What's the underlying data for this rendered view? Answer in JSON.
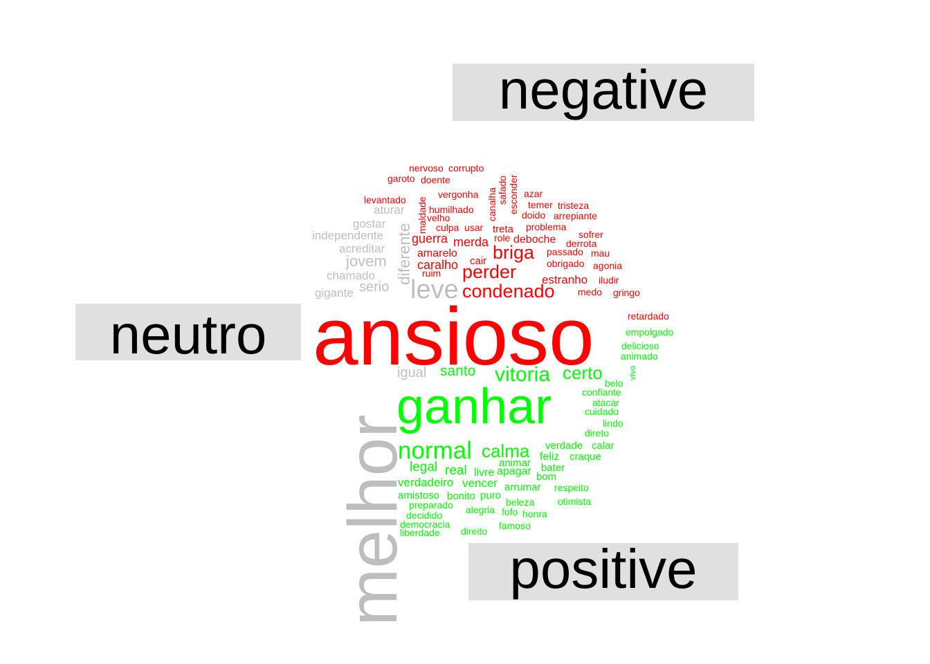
{
  "chart_data": {
    "type": "wordcloud",
    "colors": {
      "negative": "#ff0000",
      "positive": "#00ff00",
      "neutro": "#bebebe",
      "label_box": "#e0e0e0",
      "label_text": "#000000"
    },
    "categories": [
      {
        "name": "negative",
        "color": "#ff0000"
      },
      {
        "name": "neutro",
        "color": "#bebebe"
      },
      {
        "name": "positive",
        "color": "#00ff00"
      }
    ],
    "words": [
      {
        "text": "ansioso",
        "sentiment": "negative"
      },
      {
        "text": "condenado",
        "sentiment": "negative"
      },
      {
        "text": "perder",
        "sentiment": "negative"
      },
      {
        "text": "briga",
        "sentiment": "negative"
      },
      {
        "text": "merda",
        "sentiment": "negative"
      },
      {
        "text": "caralho",
        "sentiment": "negative"
      },
      {
        "text": "guerra",
        "sentiment": "negative"
      },
      {
        "text": "amarelo",
        "sentiment": "negative"
      },
      {
        "text": "deboche",
        "sentiment": "negative"
      },
      {
        "text": "estranho",
        "sentiment": "negative"
      },
      {
        "text": "cair",
        "sentiment": "negative"
      },
      {
        "text": "treta",
        "sentiment": "negative"
      },
      {
        "text": "role",
        "sentiment": "negative"
      },
      {
        "text": "problema",
        "sentiment": "negative"
      },
      {
        "text": "derrota",
        "sentiment": "negative"
      },
      {
        "text": "passado",
        "sentiment": "negative"
      },
      {
        "text": "mau",
        "sentiment": "negative"
      },
      {
        "text": "obrigado",
        "sentiment": "negative"
      },
      {
        "text": "agonia",
        "sentiment": "negative"
      },
      {
        "text": "iludir",
        "sentiment": "negative"
      },
      {
        "text": "medo",
        "sentiment": "negative"
      },
      {
        "text": "gringo",
        "sentiment": "negative"
      },
      {
        "text": "sofrer",
        "sentiment": "negative"
      },
      {
        "text": "arrepiante",
        "sentiment": "negative"
      },
      {
        "text": "doido",
        "sentiment": "negative"
      },
      {
        "text": "temer",
        "sentiment": "negative"
      },
      {
        "text": "tristeza",
        "sentiment": "negative"
      },
      {
        "text": "azar",
        "sentiment": "negative"
      },
      {
        "text": "culpa",
        "sentiment": "negative"
      },
      {
        "text": "usar",
        "sentiment": "negative"
      },
      {
        "text": "velho",
        "sentiment": "negative"
      },
      {
        "text": "humilhado",
        "sentiment": "negative"
      },
      {
        "text": "vergonha",
        "sentiment": "negative"
      },
      {
        "text": "levantado",
        "sentiment": "negative"
      },
      {
        "text": "garoto",
        "sentiment": "negative"
      },
      {
        "text": "doente",
        "sentiment": "negative"
      },
      {
        "text": "nervoso",
        "sentiment": "negative"
      },
      {
        "text": "corrupto",
        "sentiment": "negative"
      },
      {
        "text": "ruim",
        "sentiment": "negative"
      },
      {
        "text": "maldade",
        "sentiment": "negative"
      },
      {
        "text": "canalha",
        "sentiment": "negative"
      },
      {
        "text": "safado",
        "sentiment": "negative"
      },
      {
        "text": "esconder",
        "sentiment": "negative"
      },
      {
        "text": "retardado",
        "sentiment": "negative"
      },
      {
        "text": "melhor",
        "sentiment": "neutro"
      },
      {
        "text": "leve",
        "sentiment": "neutro"
      },
      {
        "text": "diferente",
        "sentiment": "neutro"
      },
      {
        "text": "jovem",
        "sentiment": "neutro"
      },
      {
        "text": "serio",
        "sentiment": "neutro"
      },
      {
        "text": "chamado",
        "sentiment": "neutro"
      },
      {
        "text": "gigante",
        "sentiment": "neutro"
      },
      {
        "text": "acreditar",
        "sentiment": "neutro"
      },
      {
        "text": "independente",
        "sentiment": "neutro"
      },
      {
        "text": "gostar",
        "sentiment": "neutro"
      },
      {
        "text": "aturar",
        "sentiment": "neutro"
      },
      {
        "text": "igual",
        "sentiment": "neutro"
      },
      {
        "text": "ganhar",
        "sentiment": "positive"
      },
      {
        "text": "normal",
        "sentiment": "positive"
      },
      {
        "text": "vitoria",
        "sentiment": "positive"
      },
      {
        "text": "certo",
        "sentiment": "positive"
      },
      {
        "text": "calma",
        "sentiment": "positive"
      },
      {
        "text": "santo",
        "sentiment": "positive"
      },
      {
        "text": "legal",
        "sentiment": "positive"
      },
      {
        "text": "real",
        "sentiment": "positive"
      },
      {
        "text": "livre",
        "sentiment": "positive"
      },
      {
        "text": "apagar",
        "sentiment": "positive"
      },
      {
        "text": "animar",
        "sentiment": "positive"
      },
      {
        "text": "feliz",
        "sentiment": "positive"
      },
      {
        "text": "craque",
        "sentiment": "positive"
      },
      {
        "text": "verdade",
        "sentiment": "positive"
      },
      {
        "text": "calar",
        "sentiment": "positive"
      },
      {
        "text": "verdadeiro",
        "sentiment": "positive"
      },
      {
        "text": "vencer",
        "sentiment": "positive"
      },
      {
        "text": "bater",
        "sentiment": "positive"
      },
      {
        "text": "bom",
        "sentiment": "positive"
      },
      {
        "text": "arrumar",
        "sentiment": "positive"
      },
      {
        "text": "respeito",
        "sentiment": "positive"
      },
      {
        "text": "amistoso",
        "sentiment": "positive"
      },
      {
        "text": "bonito",
        "sentiment": "positive"
      },
      {
        "text": "puro",
        "sentiment": "positive"
      },
      {
        "text": "beleza",
        "sentiment": "positive"
      },
      {
        "text": "otimista",
        "sentiment": "positive"
      },
      {
        "text": "preparado",
        "sentiment": "positive"
      },
      {
        "text": "alegria",
        "sentiment": "positive"
      },
      {
        "text": "fofo",
        "sentiment": "positive"
      },
      {
        "text": "honra",
        "sentiment": "positive"
      },
      {
        "text": "decidido",
        "sentiment": "positive"
      },
      {
        "text": "democracia",
        "sentiment": "positive"
      },
      {
        "text": "liberdade",
        "sentiment": "positive"
      },
      {
        "text": "direito",
        "sentiment": "positive"
      },
      {
        "text": "famoso",
        "sentiment": "positive"
      },
      {
        "text": "direto",
        "sentiment": "positive"
      },
      {
        "text": "lindo",
        "sentiment": "positive"
      },
      {
        "text": "cuidado",
        "sentiment": "positive"
      },
      {
        "text": "atacar",
        "sentiment": "positive"
      },
      {
        "text": "confiante",
        "sentiment": "positive"
      },
      {
        "text": "belo",
        "sentiment": "positive"
      },
      {
        "text": "vivo",
        "sentiment": "positive"
      },
      {
        "text": "animado",
        "sentiment": "positive"
      },
      {
        "text": "delicioso",
        "sentiment": "positive"
      },
      {
        "text": "empolgado",
        "sentiment": "positive"
      }
    ]
  }
}
